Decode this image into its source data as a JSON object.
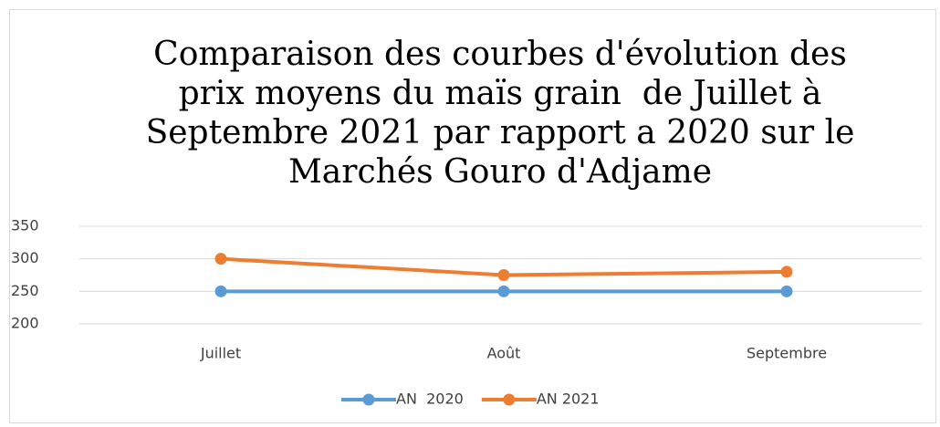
{
  "chart_data": {
    "type": "line",
    "title": "Comparaison des courbes d'évolution des prix moyens du maïs grain  de Juillet à Septembre 2021 par rapport a 2020 sur le Marchés Gouro d'Adjame",
    "categories": [
      "Juillet",
      "Août",
      "Septembre"
    ],
    "series": [
      {
        "name": "AN  2020",
        "color": "#5b9bd5",
        "values": [
          250,
          250,
          250
        ]
      },
      {
        "name": "AN 2021",
        "color": "#ed7d31",
        "values": [
          300,
          275,
          280
        ]
      }
    ],
    "ylim": [
      200,
      350
    ],
    "yticks": [
      200,
      250,
      300,
      350
    ],
    "grid": true,
    "legend": "bottom"
  }
}
